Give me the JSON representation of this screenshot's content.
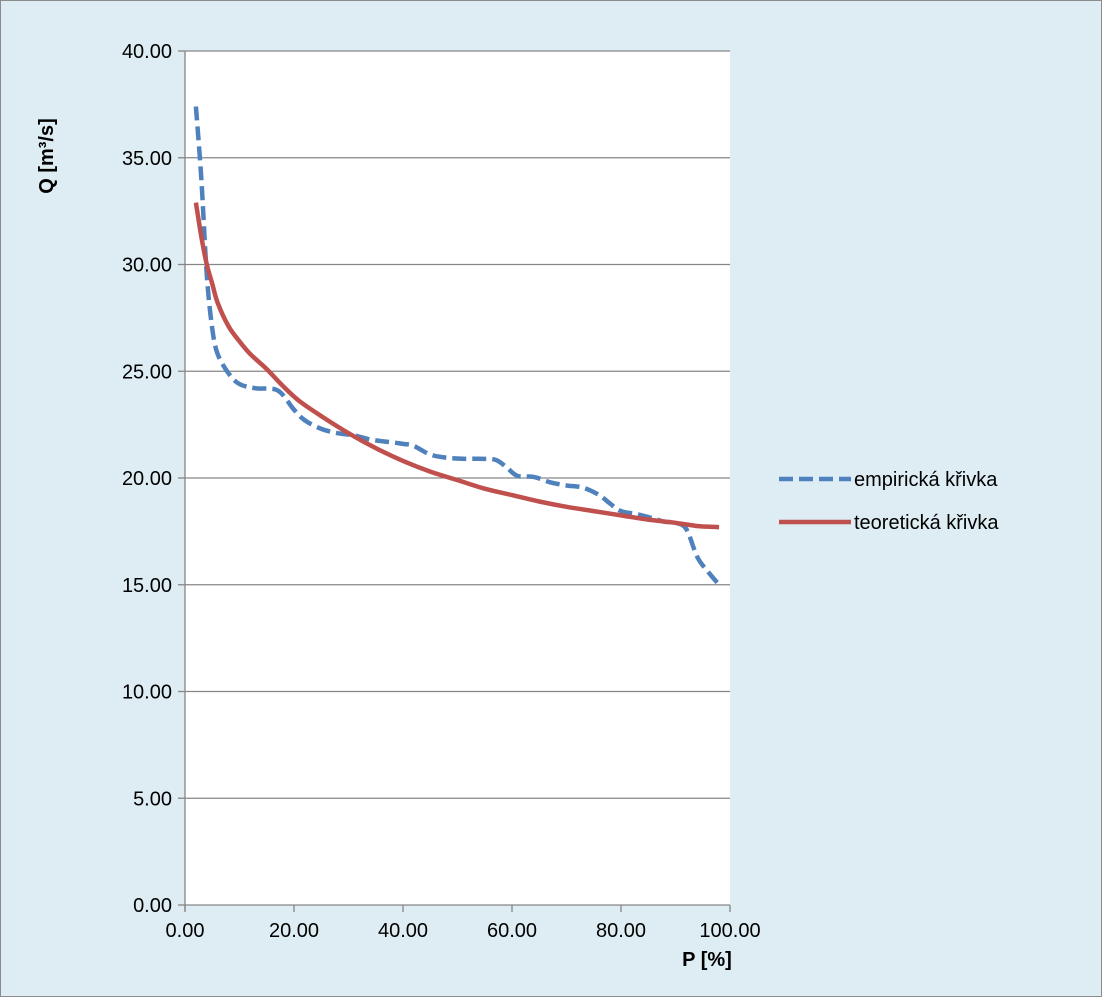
{
  "chart_data": {
    "type": "line",
    "xlabel": "P [%]",
    "ylabel": "Q [m³/s]",
    "xlim": [
      0,
      100
    ],
    "ylim": [
      0,
      40
    ],
    "xticks": [
      0,
      20,
      40,
      60,
      80,
      100
    ],
    "yticks": [
      0,
      5,
      10,
      15,
      20,
      25,
      30,
      35,
      40
    ],
    "x_tick_labels": [
      "0.00",
      "20.00",
      "40.00",
      "60.00",
      "80.00",
      "100.00"
    ],
    "y_tick_labels": [
      "0.00",
      "5.00",
      "10.00",
      "15.00",
      "20.00",
      "25.00",
      "30.00",
      "35.00",
      "40.00"
    ],
    "grid": "horizontal",
    "legend_position": "right",
    "series": [
      {
        "name": "empirická křivka",
        "color": "#4f81bd",
        "dash": "dashed",
        "x": [
          2,
          3,
          4,
          5,
          6,
          8,
          10,
          13,
          17,
          20,
          22,
          25,
          28,
          31,
          34,
          37,
          40,
          42,
          45,
          48,
          51,
          54,
          57,
          59,
          61,
          64,
          67,
          70,
          73,
          76,
          78,
          80,
          83,
          86,
          88,
          90,
          92,
          94,
          96,
          98
        ],
        "y": [
          37.4,
          34.0,
          29.5,
          27.0,
          25.8,
          24.9,
          24.4,
          24.2,
          24.1,
          23.2,
          22.7,
          22.3,
          22.1,
          22.0,
          21.8,
          21.7,
          21.6,
          21.5,
          21.1,
          20.95,
          20.9,
          20.9,
          20.85,
          20.5,
          20.1,
          20.05,
          19.8,
          19.65,
          19.55,
          19.2,
          18.8,
          18.45,
          18.3,
          18.1,
          17.95,
          17.9,
          17.6,
          16.3,
          15.6,
          15.0
        ]
      },
      {
        "name": "teoretická křivka",
        "color": "#c0504d",
        "dash": "solid",
        "x": [
          2,
          3,
          4,
          5,
          6,
          8,
          10,
          12,
          15,
          18,
          21,
          25,
          30,
          35,
          40,
          45,
          50,
          55,
          60,
          65,
          70,
          75,
          80,
          85,
          90,
          94,
          96,
          98
        ],
        "y": [
          32.9,
          31.3,
          30.0,
          29.1,
          28.2,
          27.1,
          26.4,
          25.8,
          25.1,
          24.3,
          23.6,
          22.9,
          22.1,
          21.4,
          20.8,
          20.3,
          19.9,
          19.5,
          19.2,
          18.9,
          18.65,
          18.45,
          18.25,
          18.05,
          17.9,
          17.75,
          17.72,
          17.7
        ]
      }
    ]
  }
}
